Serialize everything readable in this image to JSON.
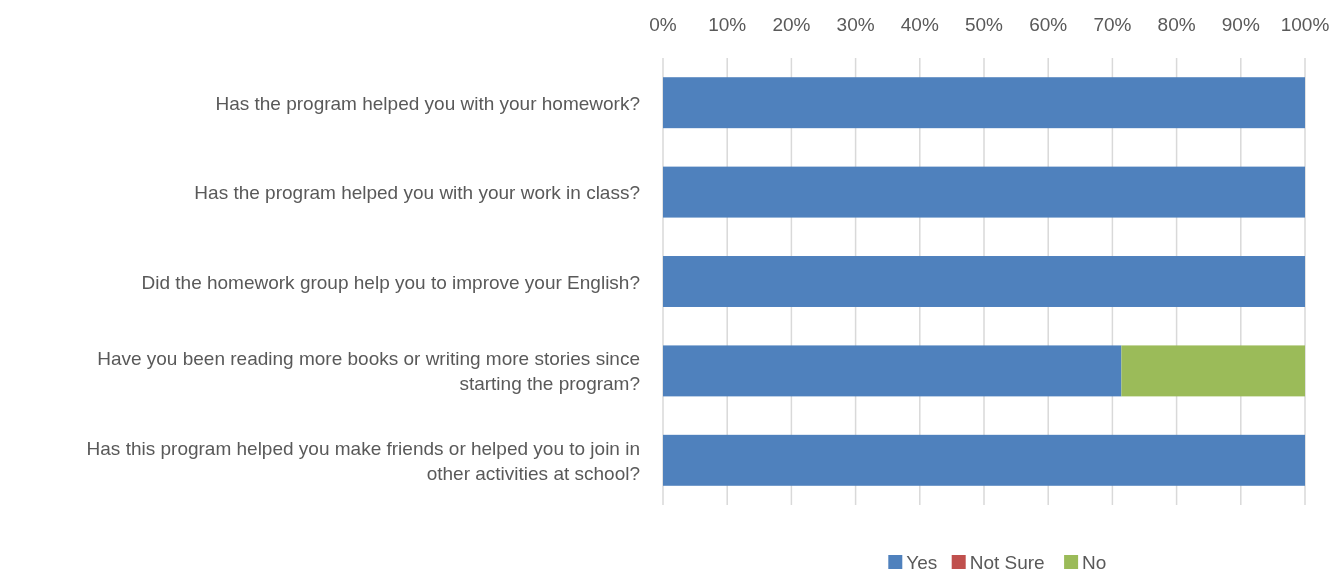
{
  "chart_data": {
    "type": "bar",
    "orientation": "horizontal",
    "stacked": true,
    "categories": [
      "Has the program helped you with your homework?",
      "Has the program helped you with your work in class?",
      "Did the homework group help you to improve your English?",
      "Have you been reading more books or writing more stories since starting the program?",
      "Has this program helped you make friends or helped you to join in other activities at school?"
    ],
    "series": [
      {
        "name": "Yes",
        "color": "#4f81bd",
        "values": [
          100,
          100,
          100,
          71.4,
          100
        ]
      },
      {
        "name": "Not Sure",
        "color": "#c0504d",
        "values": [
          0,
          0,
          0,
          0,
          0
        ]
      },
      {
        "name": "No",
        "color": "#9bbb59",
        "values": [
          0,
          0,
          0,
          28.6,
          0
        ]
      }
    ],
    "xlim": [
      0,
      100
    ],
    "xticks": [
      {
        "value": 0,
        "label": "0%"
      },
      {
        "value": 10,
        "label": "10%"
      },
      {
        "value": 20,
        "label": "20%"
      },
      {
        "value": 30,
        "label": "30%"
      },
      {
        "value": 40,
        "label": "40%"
      },
      {
        "value": 50,
        "label": "50%"
      },
      {
        "value": 60,
        "label": "60%"
      },
      {
        "value": 70,
        "label": "70%"
      },
      {
        "value": 80,
        "label": "80%"
      },
      {
        "value": 90,
        "label": "90%"
      },
      {
        "value": 100,
        "label": "100%"
      }
    ],
    "grid": "x",
    "legend": "bottom"
  }
}
